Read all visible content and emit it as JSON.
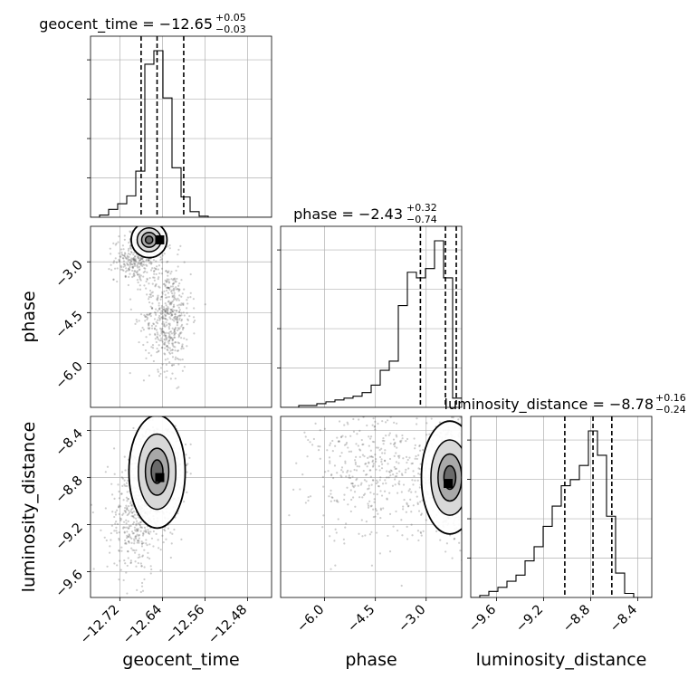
{
  "chart_data": {
    "type": "corner",
    "parameters": [
      "geocent_time",
      "phase",
      "luminosity_distance"
    ],
    "axis_labels": [
      "geocent_time",
      "phase",
      "luminosity_distance"
    ],
    "titles": [
      {
        "text": "geocent_time = −12.65",
        "plus": "+0.05",
        "minus": "−0.03"
      },
      {
        "text": "phase = −2.43",
        "plus": "+0.32",
        "minus": "−0.74"
      },
      {
        "text": "luminosity_distance = −8.78",
        "plus": "+0.16",
        "minus": "−0.24"
      }
    ],
    "ranges": [
      [
        -12.775,
        -12.435
      ],
      [
        -7.3,
        -1.95
      ],
      [
        -9.82,
        -8.28
      ]
    ],
    "ticks": [
      {
        "values": [
          -12.72,
          -12.64,
          -12.56,
          -12.48
        ],
        "labels": [
          "−12.72",
          "−12.64",
          "−12.56",
          "−12.48"
        ]
      },
      {
        "values": [
          -6.0,
          -4.5,
          -3.0
        ],
        "labels": [
          "−6.0",
          "−4.5",
          "−3.0"
        ]
      },
      {
        "values": [
          -9.6,
          -9.2,
          -8.8,
          -8.4
        ],
        "labels": [
          "−9.6",
          "−9.2",
          "−8.8",
          "−8.4"
        ]
      }
    ],
    "quantiles": [
      [
        -12.68,
        -12.65,
        -12.6
      ],
      [
        -3.17,
        -2.43,
        -2.11
      ],
      [
        -9.02,
        -8.78,
        -8.62
      ]
    ],
    "histograms": [
      {
        "edges_start": -12.775,
        "bin_width": 0.017,
        "counts": [
          0,
          2,
          7,
          12,
          19,
          41,
          136,
          148,
          106,
          44,
          18,
          5,
          1,
          0,
          0,
          0,
          0,
          0,
          0,
          0
        ]
      },
      {
        "edges_start": -7.3,
        "bin_width": 0.2675,
        "counts": [
          0,
          0,
          1,
          1,
          2,
          3,
          4,
          5,
          6,
          8,
          12,
          20,
          25,
          55,
          73,
          70,
          75,
          90,
          70,
          5
        ]
      },
      {
        "edges_start": -9.82,
        "bin_width": 0.077,
        "counts": [
          0,
          1,
          3,
          5,
          8,
          11,
          18,
          25,
          35,
          45,
          55,
          58,
          65,
          82,
          70,
          40,
          12,
          2,
          0,
          0
        ]
      }
    ],
    "scatter_2d": [
      {
        "x_param": "geocent_time",
        "y_param": "phase",
        "modes": [
          {
            "x": -12.665,
            "y": -2.35,
            "sx": 0.014,
            "sy": 0.22,
            "weight": 0.4
          },
          {
            "x": -12.69,
            "y": -2.95,
            "sx": 0.02,
            "sy": 0.3,
            "weight": 0.2
          },
          {
            "x": -12.63,
            "y": -4.6,
            "sx": 0.022,
            "sy": 0.8,
            "weight": 0.4
          }
        ],
        "density_peak": {
          "x": -12.645,
          "y": -2.35
        }
      },
      {
        "x_param": "geocent_time",
        "y_param": "luminosity_distance",
        "modes": [
          {
            "x": -12.65,
            "y": -8.75,
            "sx": 0.022,
            "sy": 0.2,
            "weight": 0.7
          },
          {
            "x": -12.69,
            "y": -9.15,
            "sx": 0.026,
            "sy": 0.25,
            "weight": 0.3
          }
        ],
        "density_peak": {
          "x": -12.645,
          "y": -8.8
        }
      },
      {
        "x_param": "phase",
        "y_param": "luminosity_distance",
        "modes": [
          {
            "x": -2.3,
            "y": -8.8,
            "sx": 0.35,
            "sy": 0.2,
            "weight": 0.65
          },
          {
            "x": -4.4,
            "y": -8.75,
            "sx": 1.0,
            "sy": 0.3,
            "weight": 0.35
          }
        ],
        "density_peak": {
          "x": -2.35,
          "y": -8.85
        }
      }
    ],
    "grid": true,
    "colors": {
      "line": "#000000",
      "points": "#4d4d4d",
      "grid": "#b0b0b0",
      "density": "#000000"
    }
  }
}
